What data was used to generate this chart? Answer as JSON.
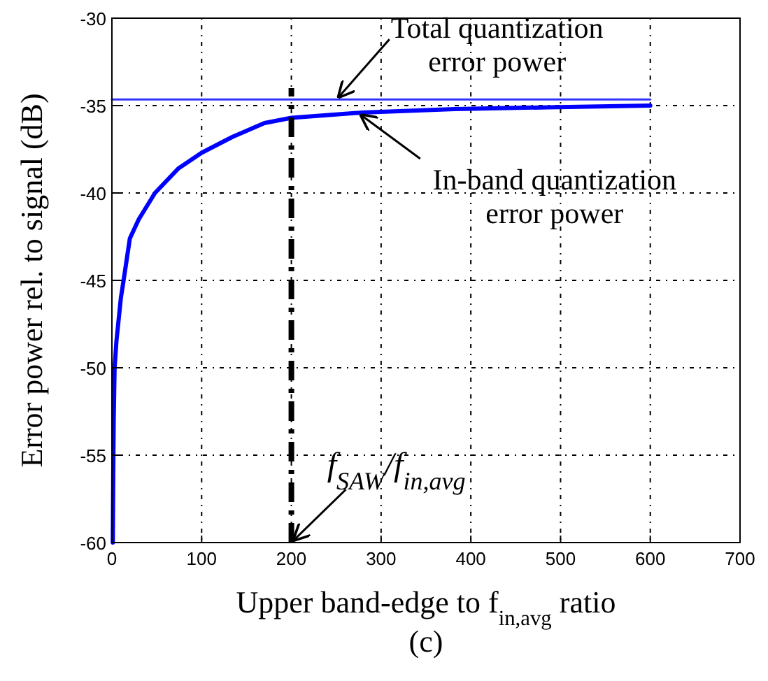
{
  "chart_data": {
    "type": "line",
    "xlabel": "Upper band-edge to f$_{in,avg}$ ratio",
    "ylabel": "Error power rel. to signal (dB)",
    "xlim": [
      0,
      700
    ],
    "ylim": [
      -60,
      -30
    ],
    "xticks": [
      0,
      100,
      200,
      300,
      400,
      500,
      600,
      700
    ],
    "yticks": [
      -60,
      -55,
      -50,
      -45,
      -40,
      -35,
      -30
    ],
    "grid": true,
    "series": [
      {
        "color": "#0000ff",
        "x": [
          1,
          1.5,
          2,
          3,
          5,
          7,
          10,
          13,
          20,
          30,
          48,
          74,
          100,
          134,
          170,
          200,
          279,
          382,
          486,
          600
        ],
        "values": [
          -60,
          -56,
          -53,
          -50,
          -48.5,
          -47.5,
          -46,
          -45,
          -42.6,
          -41.5,
          -40,
          -38.6,
          -37.7,
          -36.8,
          -36,
          -35.7,
          -35.4,
          -35.2,
          -35.1,
          -35
        ]
      },
      {
        "color": "#3333ff",
        "x": [
          0,
          600
        ],
        "values": [
          -34.65,
          -34.65
        ]
      },
      {
        "color": "#000000",
        "x": [
          200,
          200
        ],
        "values": [
          -60,
          -34
        ],
        "line_style": "dashed"
      }
    ],
    "annotations": [
      {
        "text": "Total quantization error power",
        "x": 250,
        "y": -34.65
      },
      {
        "text": "In-band quantization error power",
        "x": 275,
        "y": -35.4
      },
      {
        "text": "f$_{SAW}$/f$_{in,avg}$",
        "x": 200,
        "y": -60
      },
      "(c)"
    ]
  }
}
